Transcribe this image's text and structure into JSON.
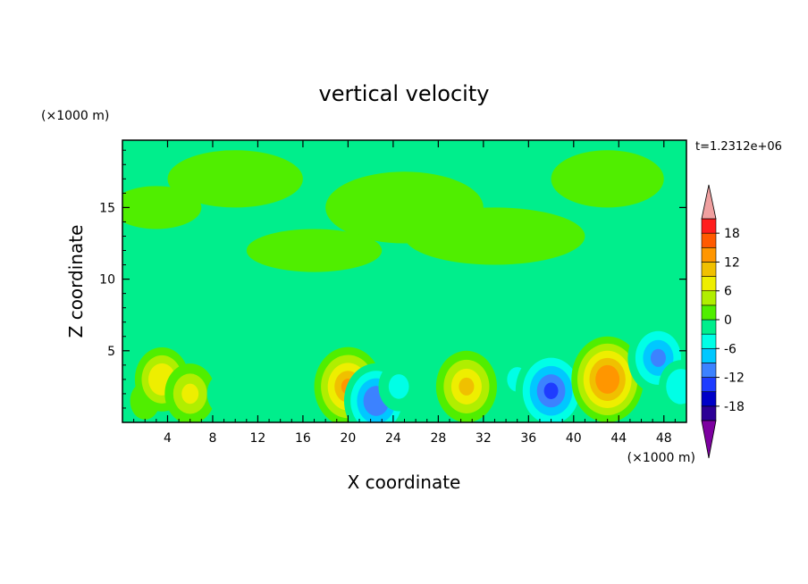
{
  "chart_data": {
    "type": "heatmap",
    "title": "vertical velocity",
    "time_label": "t=1.2312e+06",
    "xlabel": "X coordinate",
    "ylabel": "Z coordinate",
    "x_unit": "(×1000 m)",
    "y_unit": "(×1000 m)",
    "xlim": [
      0,
      50
    ],
    "ylim": [
      0,
      19.7
    ],
    "x_ticks": [
      4,
      8,
      12,
      16,
      20,
      24,
      28,
      32,
      36,
      40,
      44,
      48
    ],
    "y_ticks": [
      5,
      10,
      15
    ],
    "grid": false,
    "colorbar": {
      "levels": [
        -21,
        -18,
        -15,
        -12,
        -9,
        -6,
        -3,
        0,
        3,
        6,
        9,
        12,
        15,
        18,
        21
      ],
      "labeled_ticks": [
        18,
        12,
        6,
        0,
        -6,
        -12,
        -18
      ],
      "colors": [
        "#7d00a0",
        "#2c0096",
        "#0000c8",
        "#1e3cff",
        "#3c82ff",
        "#00c8ff",
        "#00ffe6",
        "#00ee8c",
        "#50ee00",
        "#b0ee00",
        "#eeee00",
        "#f0c000",
        "#ff9600",
        "#ff5a00",
        "#ff1e1e",
        "#f0a0a0"
      ],
      "over_color": "#f0a0a0",
      "under_color": "#7d00a0"
    },
    "field_features": [
      {
        "x": 2,
        "z": 1.5,
        "w": 0.8,
        "label": "updraft"
      },
      {
        "x": 3.5,
        "z": 3,
        "w": 8,
        "label": "updraft"
      },
      {
        "x": 6,
        "z": 2,
        "w": 7,
        "label": "updraft"
      },
      {
        "x": 9,
        "z": 2,
        "w": -2,
        "label": "downdraft"
      },
      {
        "x": 13,
        "z": 4.5,
        "w": -2,
        "label": "downdraft"
      },
      {
        "x": 20,
        "z": 2.5,
        "w": 12,
        "label": "updraft"
      },
      {
        "x": 22.5,
        "z": 1.5,
        "w": -11,
        "label": "downdraft"
      },
      {
        "x": 24.5,
        "z": 2.5,
        "w": -4,
        "label": "downdraft"
      },
      {
        "x": 30.5,
        "z": 2.5,
        "w": 10,
        "label": "updraft"
      },
      {
        "x": 35,
        "z": 3,
        "w": -4,
        "label": "downdraft"
      },
      {
        "x": 38,
        "z": 2.2,
        "w": -13,
        "label": "downdraft"
      },
      {
        "x": 43,
        "z": 3,
        "w": 14,
        "label": "updraft"
      },
      {
        "x": 47.5,
        "z": 4.5,
        "w": -10,
        "label": "downdraft"
      },
      {
        "x": 49.5,
        "z": 2.5,
        "w": -5,
        "label": "downdraft"
      }
    ]
  }
}
